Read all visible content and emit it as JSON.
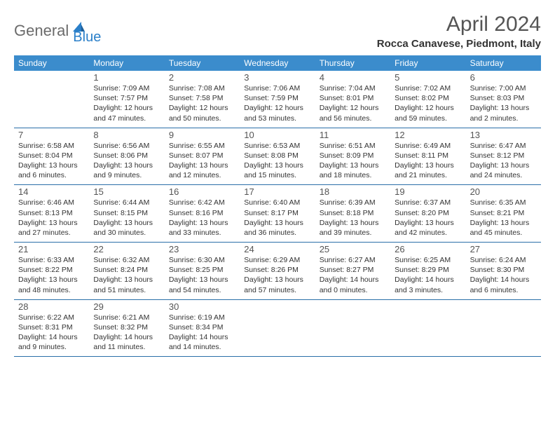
{
  "logo": {
    "part1": "General",
    "part2": "Blue",
    "shape_color": "#2a7fc9"
  },
  "title": "April 2024",
  "location": "Rocca Canavese, Piedmont, Italy",
  "colors": {
    "header_bg": "#3b8ccc",
    "header_text": "#ffffff",
    "rule": "#2a6fa8",
    "shaded_bg": "#eef3f6",
    "text": "#333333",
    "muted": "#555555"
  },
  "day_names": [
    "Sunday",
    "Monday",
    "Tuesday",
    "Wednesday",
    "Thursday",
    "Friday",
    "Saturday"
  ],
  "weeks": [
    [
      {
        "n": "",
        "sr": "",
        "ss": "",
        "dl": "",
        "empty": true
      },
      {
        "n": "1",
        "sr": "Sunrise: 7:09 AM",
        "ss": "Sunset: 7:57 PM",
        "dl": "Daylight: 12 hours and 47 minutes."
      },
      {
        "n": "2",
        "sr": "Sunrise: 7:08 AM",
        "ss": "Sunset: 7:58 PM",
        "dl": "Daylight: 12 hours and 50 minutes."
      },
      {
        "n": "3",
        "sr": "Sunrise: 7:06 AM",
        "ss": "Sunset: 7:59 PM",
        "dl": "Daylight: 12 hours and 53 minutes."
      },
      {
        "n": "4",
        "sr": "Sunrise: 7:04 AM",
        "ss": "Sunset: 8:01 PM",
        "dl": "Daylight: 12 hours and 56 minutes."
      },
      {
        "n": "5",
        "sr": "Sunrise: 7:02 AM",
        "ss": "Sunset: 8:02 PM",
        "dl": "Daylight: 12 hours and 59 minutes."
      },
      {
        "n": "6",
        "sr": "Sunrise: 7:00 AM",
        "ss": "Sunset: 8:03 PM",
        "dl": "Daylight: 13 hours and 2 minutes."
      }
    ],
    [
      {
        "n": "7",
        "sr": "Sunrise: 6:58 AM",
        "ss": "Sunset: 8:04 PM",
        "dl": "Daylight: 13 hours and 6 minutes."
      },
      {
        "n": "8",
        "sr": "Sunrise: 6:56 AM",
        "ss": "Sunset: 8:06 PM",
        "dl": "Daylight: 13 hours and 9 minutes."
      },
      {
        "n": "9",
        "sr": "Sunrise: 6:55 AM",
        "ss": "Sunset: 8:07 PM",
        "dl": "Daylight: 13 hours and 12 minutes."
      },
      {
        "n": "10",
        "sr": "Sunrise: 6:53 AM",
        "ss": "Sunset: 8:08 PM",
        "dl": "Daylight: 13 hours and 15 minutes."
      },
      {
        "n": "11",
        "sr": "Sunrise: 6:51 AM",
        "ss": "Sunset: 8:09 PM",
        "dl": "Daylight: 13 hours and 18 minutes."
      },
      {
        "n": "12",
        "sr": "Sunrise: 6:49 AM",
        "ss": "Sunset: 8:11 PM",
        "dl": "Daylight: 13 hours and 21 minutes."
      },
      {
        "n": "13",
        "sr": "Sunrise: 6:47 AM",
        "ss": "Sunset: 8:12 PM",
        "dl": "Daylight: 13 hours and 24 minutes."
      }
    ],
    [
      {
        "n": "14",
        "sr": "Sunrise: 6:46 AM",
        "ss": "Sunset: 8:13 PM",
        "dl": "Daylight: 13 hours and 27 minutes."
      },
      {
        "n": "15",
        "sr": "Sunrise: 6:44 AM",
        "ss": "Sunset: 8:15 PM",
        "dl": "Daylight: 13 hours and 30 minutes."
      },
      {
        "n": "16",
        "sr": "Sunrise: 6:42 AM",
        "ss": "Sunset: 8:16 PM",
        "dl": "Daylight: 13 hours and 33 minutes."
      },
      {
        "n": "17",
        "sr": "Sunrise: 6:40 AM",
        "ss": "Sunset: 8:17 PM",
        "dl": "Daylight: 13 hours and 36 minutes."
      },
      {
        "n": "18",
        "sr": "Sunrise: 6:39 AM",
        "ss": "Sunset: 8:18 PM",
        "dl": "Daylight: 13 hours and 39 minutes."
      },
      {
        "n": "19",
        "sr": "Sunrise: 6:37 AM",
        "ss": "Sunset: 8:20 PM",
        "dl": "Daylight: 13 hours and 42 minutes."
      },
      {
        "n": "20",
        "sr": "Sunrise: 6:35 AM",
        "ss": "Sunset: 8:21 PM",
        "dl": "Daylight: 13 hours and 45 minutes."
      }
    ],
    [
      {
        "n": "21",
        "sr": "Sunrise: 6:33 AM",
        "ss": "Sunset: 8:22 PM",
        "dl": "Daylight: 13 hours and 48 minutes."
      },
      {
        "n": "22",
        "sr": "Sunrise: 6:32 AM",
        "ss": "Sunset: 8:24 PM",
        "dl": "Daylight: 13 hours and 51 minutes."
      },
      {
        "n": "23",
        "sr": "Sunrise: 6:30 AM",
        "ss": "Sunset: 8:25 PM",
        "dl": "Daylight: 13 hours and 54 minutes."
      },
      {
        "n": "24",
        "sr": "Sunrise: 6:29 AM",
        "ss": "Sunset: 8:26 PM",
        "dl": "Daylight: 13 hours and 57 minutes."
      },
      {
        "n": "25",
        "sr": "Sunrise: 6:27 AM",
        "ss": "Sunset: 8:27 PM",
        "dl": "Daylight: 14 hours and 0 minutes."
      },
      {
        "n": "26",
        "sr": "Sunrise: 6:25 AM",
        "ss": "Sunset: 8:29 PM",
        "dl": "Daylight: 14 hours and 3 minutes."
      },
      {
        "n": "27",
        "sr": "Sunrise: 6:24 AM",
        "ss": "Sunset: 8:30 PM",
        "dl": "Daylight: 14 hours and 6 minutes."
      }
    ],
    [
      {
        "n": "28",
        "sr": "Sunrise: 6:22 AM",
        "ss": "Sunset: 8:31 PM",
        "dl": "Daylight: 14 hours and 9 minutes."
      },
      {
        "n": "29",
        "sr": "Sunrise: 6:21 AM",
        "ss": "Sunset: 8:32 PM",
        "dl": "Daylight: 14 hours and 11 minutes."
      },
      {
        "n": "30",
        "sr": "Sunrise: 6:19 AM",
        "ss": "Sunset: 8:34 PM",
        "dl": "Daylight: 14 hours and 14 minutes."
      },
      {
        "n": "",
        "sr": "",
        "ss": "",
        "dl": "",
        "empty": true
      },
      {
        "n": "",
        "sr": "",
        "ss": "",
        "dl": "",
        "empty": true
      },
      {
        "n": "",
        "sr": "",
        "ss": "",
        "dl": "",
        "empty": true
      },
      {
        "n": "",
        "sr": "",
        "ss": "",
        "dl": "",
        "empty": true
      }
    ]
  ]
}
